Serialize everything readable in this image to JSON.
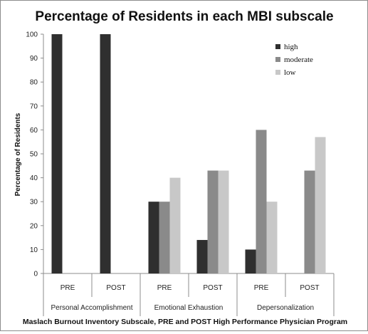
{
  "chart_data": {
    "type": "bar",
    "title": "Percentage of Residents in each MBI subscale",
    "ylabel": "Percentage of Residents",
    "xlabel": "Maslach Burnout Inventory Subscale, PRE and POST High Performance Physician Program",
    "ylim": [
      0,
      100
    ],
    "yticks": [
      0,
      10,
      20,
      30,
      40,
      50,
      60,
      70,
      80,
      90,
      100
    ],
    "grid": false,
    "legend_position": "top-right",
    "groups": [
      {
        "label": "Personal Accomplishment",
        "categories": [
          "PRE",
          "POST"
        ]
      },
      {
        "label": "Emotional Exhaustion",
        "categories": [
          "PRE",
          "POST"
        ]
      },
      {
        "label": "Depersonalization",
        "categories": [
          "PRE",
          "POST"
        ]
      }
    ],
    "series": [
      {
        "name": "high",
        "color": "#2f2f2f",
        "values": [
          100,
          100,
          30,
          14,
          10,
          0
        ]
      },
      {
        "name": "moderate",
        "color": "#8a8a8a",
        "values": [
          0,
          0,
          30,
          43,
          60,
          43
        ]
      },
      {
        "name": "low",
        "color": "#c8c8c8",
        "values": [
          0,
          0,
          40,
          43,
          30,
          57
        ]
      }
    ]
  }
}
